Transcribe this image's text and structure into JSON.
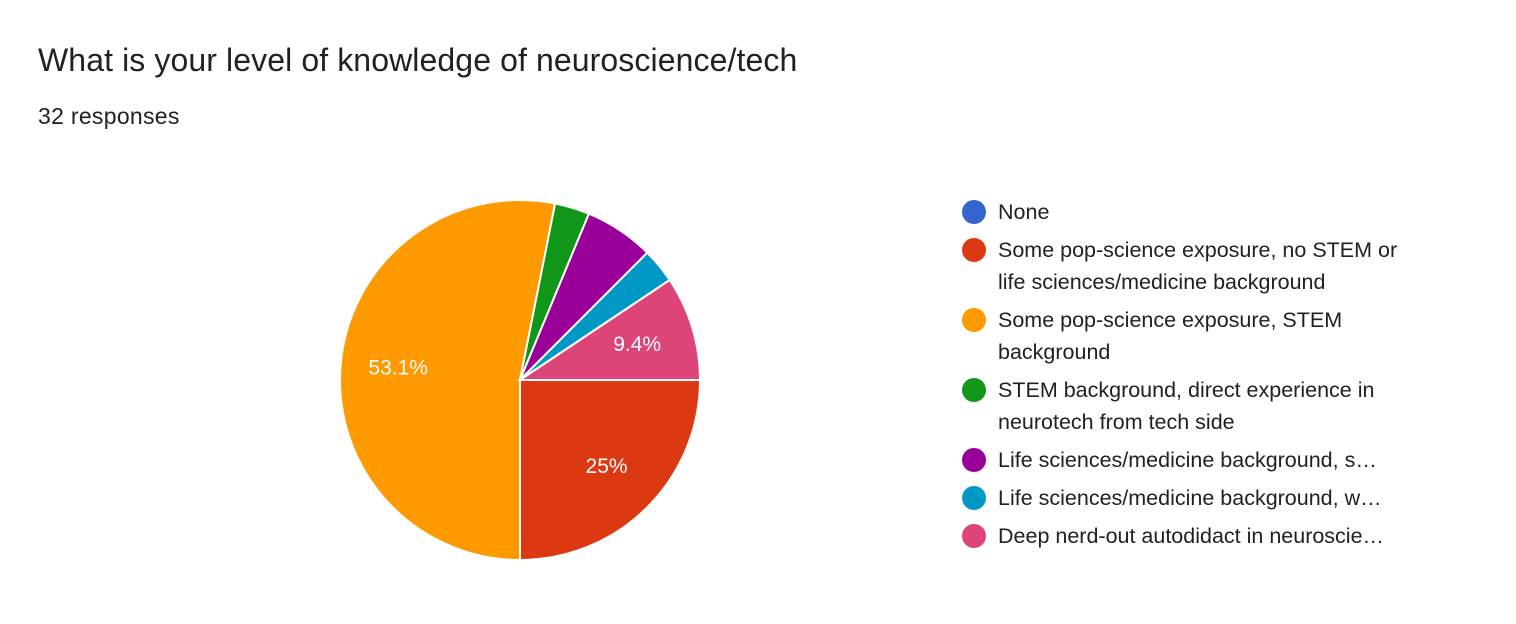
{
  "title": "What is your level of knowledge of neuroscience/tech",
  "subtitle": "32 responses",
  "chart_data": {
    "type": "pie",
    "title": "What is your level of knowledge of neuroscience/tech",
    "subtitle": "32 responses",
    "legend_position": "right",
    "slices": [
      {
        "name": "None",
        "value": 0,
        "percent_label": "",
        "color": "#3366cc",
        "truncated": false
      },
      {
        "name": "Some pop-science exposure, no STEM or life sciences/medicine background",
        "value": 8,
        "percent_label": "25%",
        "color": "#dc3912",
        "truncated": false
      },
      {
        "name": "Some pop-science exposure, STEM background",
        "value": 17,
        "percent_label": "53.1%",
        "color": "#ff9900",
        "truncated": false
      },
      {
        "name": "STEM background, direct experience in neurotech from tech side",
        "value": 1,
        "percent_label": "",
        "color": "#109618",
        "truncated": false
      },
      {
        "name": "Life sciences/medicine background, s…",
        "value": 2,
        "percent_label": "",
        "color": "#990099",
        "truncated": true
      },
      {
        "name": "Life sciences/medicine background, w…",
        "value": 1,
        "percent_label": "",
        "color": "#0099c6",
        "truncated": true
      },
      {
        "name": "Deep nerd-out autodidact in neuroscie…",
        "value": 3,
        "percent_label": "9.4%",
        "color": "#dd4477",
        "truncated": true
      }
    ]
  }
}
